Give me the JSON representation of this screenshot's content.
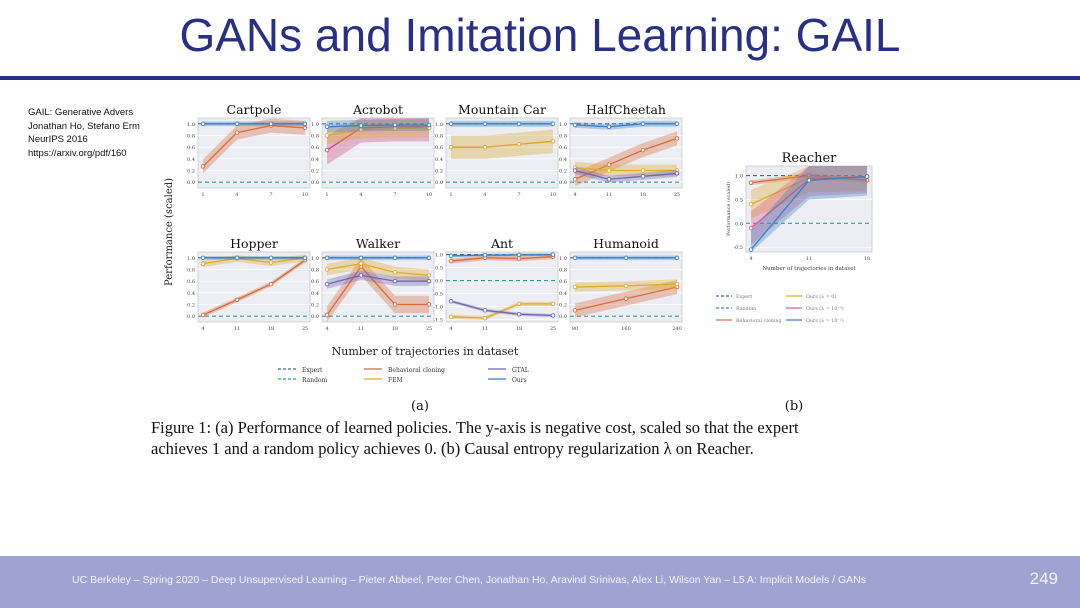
{
  "slide": {
    "title": "GANs and Imitation Learning: GAIL",
    "reference_lines": [
      "GAIL: Generative Advers",
      "Jonathan Ho, Stefano Erm",
      "NeurIPS 2016",
      "https://arxiv.org/pdf/160"
    ],
    "caption_lines": [
      "Figure 1: (a) Performance of learned policies. The y-axis is negative cost, scaled so that the expert",
      "achieves 1 and a random policy achieves 0. (b) Causal entropy regularization λ on Reacher."
    ],
    "footer": "UC Berkeley – Spring 2020 – Deep Unsupervised Learning – Pieter Abbeel, Peter Chen, Jonathan Ho, Aravind Srinivas, Alex Li, Wilson Yan – L5 A: Implicit Models / GANs",
    "page_number": "249"
  },
  "figure": {
    "ylabel": "Performance (scaled)",
    "xlabel": "Number of trajectories in dataset",
    "label_a": "(a)",
    "label_b": "(b)",
    "legend_a": [
      "Expert",
      "Random",
      "Behavioral cloning",
      "FEM",
      "GTAL",
      "Ours"
    ],
    "legend_b": [
      "Expert",
      "Random",
      "Behavioral cloning",
      "Ours (λ = 0)",
      "Ours (λ = 10⁻³)",
      "Ours (λ = 10⁻²)"
    ],
    "reacher_ylabel": "Performance (scaled)",
    "reacher_xlabel": "Number of trajectories in dataset"
  },
  "chart_data": [
    {
      "type": "line",
      "title": "Cartpole",
      "x": [
        1,
        4,
        7,
        10
      ],
      "xticks": [
        "1",
        "4",
        "7",
        "10"
      ],
      "ylim": [
        -0.1,
        1.1
      ],
      "yticks": [
        "0.0",
        "0.2",
        "0.4",
        "0.6",
        "0.8",
        "1.0"
      ],
      "series": [
        {
          "name": "Expert",
          "values": [
            1,
            1,
            1,
            1
          ],
          "color": "#3a67a8",
          "style": "dash"
        },
        {
          "name": "Random",
          "values": [
            0,
            0,
            0,
            0
          ],
          "color": "#2d9aa0",
          "style": "dash"
        },
        {
          "name": "Behavioral cloning",
          "values": [
            0.27,
            0.85,
            0.97,
            0.93
          ],
          "color": "#d8693a",
          "band": 0.12
        },
        {
          "name": "Ours",
          "values": [
            1,
            1,
            1,
            1
          ],
          "color": "#3b7ec2",
          "band": 0.04
        }
      ]
    },
    {
      "type": "line",
      "title": "Acrobot",
      "x": [
        1,
        4,
        7,
        10
      ],
      "xticks": [
        "1",
        "4",
        "7",
        "10"
      ],
      "ylim": [
        -0.1,
        1.1
      ],
      "yticks": [
        "0.0",
        "0.2",
        "0.4",
        "0.6",
        "0.8",
        "1.0"
      ],
      "series": [
        {
          "name": "Expert",
          "values": [
            1,
            1,
            1,
            1
          ],
          "color": "#3a67a8",
          "style": "dash"
        },
        {
          "name": "Random",
          "values": [
            0,
            0,
            0,
            0
          ],
          "color": "#2d9aa0",
          "style": "dash"
        },
        {
          "name": "Behavioral cloning",
          "values": [
            0.55,
            0.93,
            0.95,
            0.95
          ],
          "color": "#c9467a",
          "band": 0.25
        },
        {
          "name": "FEM",
          "values": [
            0.8,
            0.9,
            0.92,
            0.93
          ],
          "color": "#e0a92a",
          "band": 0.15
        },
        {
          "name": "Ours",
          "values": [
            0.95,
            0.97,
            0.98,
            0.98
          ],
          "color": "#3b7ec2",
          "band": 0.1
        }
      ]
    },
    {
      "type": "line",
      "title": "Mountain Car",
      "x": [
        1,
        4,
        7,
        10
      ],
      "xticks": [
        "1",
        "4",
        "7",
        "10"
      ],
      "ylim": [
        -0.1,
        1.1
      ],
      "yticks": [
        "0.0",
        "0.2",
        "0.4",
        "0.6",
        "0.8",
        "1.0"
      ],
      "series": [
        {
          "name": "Expert",
          "values": [
            1,
            1,
            1,
            1
          ],
          "color": "#3a67a8",
          "style": "dash"
        },
        {
          "name": "Random",
          "values": [
            0,
            0,
            0,
            0
          ],
          "color": "#2d9aa0",
          "style": "dash"
        },
        {
          "name": "Behavioral cloning",
          "values": [
            0.6,
            0.6,
            0.65,
            0.7
          ],
          "color": "#d9a52c",
          "band": 0.2
        },
        {
          "name": "Ours",
          "values": [
            1,
            1,
            1,
            1
          ],
          "color": "#3b7ec2",
          "band": 0.05
        }
      ]
    },
    {
      "type": "line",
      "title": "HalfCheetah",
      "x": [
        4,
        11,
        18,
        25
      ],
      "xticks": [
        "4",
        "11",
        "18",
        "25"
      ],
      "ylim": [
        -0.1,
        1.1
      ],
      "yticks": [
        "0.0",
        "0.2",
        "0.4",
        "0.6",
        "0.8",
        "1.0"
      ],
      "series": [
        {
          "name": "Expert",
          "values": [
            1,
            1,
            1,
            1
          ],
          "color": "#3a67a8",
          "style": "dash"
        },
        {
          "name": "Random",
          "values": [
            0,
            0,
            0,
            0
          ],
          "color": "#2d9aa0",
          "style": "dash"
        },
        {
          "name": "Behavioral cloning",
          "values": [
            0.05,
            0.3,
            0.55,
            0.75
          ],
          "color": "#d8693a",
          "band": 0.12
        },
        {
          "name": "FEM",
          "values": [
            0.25,
            0.2,
            0.2,
            0.2
          ],
          "color": "#e0a92a",
          "band": 0.1
        },
        {
          "name": "GTAL",
          "values": [
            0.2,
            0.05,
            0.1,
            0.15
          ],
          "color": "#7464b0",
          "band": 0.06
        },
        {
          "name": "Ours",
          "values": [
            0.98,
            0.95,
            1,
            1
          ],
          "color": "#3b7ec2",
          "band": 0.05
        }
      ]
    },
    {
      "type": "line",
      "title": "Hopper",
      "x": [
        4,
        11,
        18,
        25
      ],
      "xticks": [
        "4",
        "11",
        "18",
        "25"
      ],
      "ylim": [
        -0.1,
        1.1
      ],
      "yticks": [
        "0.0",
        "0.2",
        "0.4",
        "0.6",
        "0.8",
        "1.0"
      ],
      "series": [
        {
          "name": "Expert",
          "values": [
            1,
            1,
            1,
            1
          ],
          "color": "#3a67a8",
          "style": "dash"
        },
        {
          "name": "Random",
          "values": [
            0,
            0,
            0,
            0
          ],
          "color": "#2d9aa0",
          "style": "dash"
        },
        {
          "name": "Behavioral cloning",
          "values": [
            0.02,
            0.28,
            0.55,
            0.96
          ],
          "color": "#d8693a",
          "band": 0.04
        },
        {
          "name": "FEM",
          "values": [
            0.9,
            0.99,
            0.92,
            1
          ],
          "color": "#e0a92a",
          "band": 0.06
        },
        {
          "name": "Ours",
          "values": [
            1,
            1,
            1,
            1
          ],
          "color": "#3b7ec2",
          "band": 0.03
        }
      ]
    },
    {
      "type": "line",
      "title": "Walker",
      "x": [
        4,
        11,
        18,
        25
      ],
      "xticks": [
        "4",
        "11",
        "18",
        "25"
      ],
      "ylim": [
        -0.1,
        1.1
      ],
      "yticks": [
        "0.0",
        "0.2",
        "0.4",
        "0.6",
        "0.8",
        "1.0"
      ],
      "series": [
        {
          "name": "Expert",
          "values": [
            1,
            1,
            1,
            1
          ],
          "color": "#3a67a8",
          "style": "dash"
        },
        {
          "name": "Random",
          "values": [
            0,
            0,
            0,
            0
          ],
          "color": "#2d9aa0",
          "style": "dash"
        },
        {
          "name": "Behavioral cloning",
          "values": [
            0.02,
            0.85,
            0.2,
            0.2
          ],
          "color": "#d8693a",
          "band": 0.15
        },
        {
          "name": "FEM",
          "values": [
            0.8,
            0.9,
            0.75,
            0.7
          ],
          "color": "#e0a92a",
          "band": 0.1
        },
        {
          "name": "GTAL",
          "values": [
            0.55,
            0.7,
            0.6,
            0.6
          ],
          "color": "#7464b0",
          "band": 0.08
        },
        {
          "name": "Ours",
          "values": [
            1,
            1,
            1,
            1
          ],
          "color": "#3b7ec2",
          "band": 0.04
        }
      ]
    },
    {
      "type": "line",
      "title": "Ant",
      "x": [
        4,
        11,
        18,
        25
      ],
      "xticks": [
        "4",
        "11",
        "18",
        "25"
      ],
      "ylim": [
        -1.6,
        1.1
      ],
      "yticks": [
        "-1.5",
        "-1.0",
        "-0.5",
        "0.0",
        "0.5",
        "1.0"
      ],
      "series": [
        {
          "name": "Expert",
          "values": [
            1,
            1,
            1,
            1
          ],
          "color": "#3a67a8",
          "style": "dash"
        },
        {
          "name": "Random",
          "values": [
            0,
            0,
            0,
            0
          ],
          "color": "#2d9aa0",
          "style": "dash"
        },
        {
          "name": "Behavioral cloning",
          "values": [
            0.75,
            0.88,
            0.85,
            0.92
          ],
          "color": "#d8693a",
          "band": 0.1
        },
        {
          "name": "FEM",
          "values": [
            -1.4,
            -1.45,
            -0.9,
            -0.9
          ],
          "color": "#e0a92a",
          "band": 0.08
        },
        {
          "name": "GTAL",
          "values": [
            -0.8,
            -1.15,
            -1.3,
            -1.35
          ],
          "color": "#7464b0",
          "band": 0.06
        },
        {
          "name": "Ours",
          "values": [
            0.95,
            0.98,
            0.99,
            1
          ],
          "color": "#3b7ec2",
          "band": 0.05
        }
      ]
    },
    {
      "type": "line",
      "title": "Humanoid",
      "x": [
        80,
        160,
        240
      ],
      "xticks": [
        "80",
        "160",
        "240"
      ],
      "ylim": [
        -0.1,
        1.1
      ],
      "yticks": [
        "0.0",
        "0.2",
        "0.4",
        "0.6",
        "0.8",
        "1.0"
      ],
      "series": [
        {
          "name": "Expert",
          "values": [
            1,
            1,
            1
          ],
          "color": "#3a67a8",
          "style": "dash"
        },
        {
          "name": "Random",
          "values": [
            0,
            0,
            0
          ],
          "color": "#2d9aa0",
          "style": "dash"
        },
        {
          "name": "Behavioral cloning",
          "values": [
            0.1,
            0.3,
            0.5
          ],
          "color": "#d8693a",
          "band": 0.12
        },
        {
          "name": "FEM",
          "values": [
            0.5,
            0.52,
            0.55
          ],
          "color": "#e0a92a",
          "band": 0.08
        },
        {
          "name": "Ours",
          "values": [
            1,
            1,
            1
          ],
          "color": "#3b7ec2",
          "band": 0.04
        }
      ]
    },
    {
      "type": "line",
      "title": "Reacher",
      "x": [
        4,
        11,
        18
      ],
      "xticks": [
        "4",
        "11",
        "18"
      ],
      "ylim": [
        -0.6,
        1.2
      ],
      "yticks": [
        "-0.5",
        "0.0",
        "0.5",
        "1.0"
      ],
      "series": [
        {
          "name": "Expert",
          "values": [
            1,
            1,
            1
          ],
          "color": "#3a67a8",
          "style": "dash"
        },
        {
          "name": "Random",
          "values": [
            0,
            0,
            0
          ],
          "color": "#2d9aa0",
          "style": "dash"
        },
        {
          "name": "Behavioral cloning",
          "values": [
            0.85,
            1,
            0.9
          ],
          "color": "#d8693a",
          "band": 0.05
        },
        {
          "name": "Ours (λ = 0)",
          "values": [
            0.4,
            0.95,
            0.97
          ],
          "color": "#e0a92a",
          "band": 0.3
        },
        {
          "name": "Ours (λ = 10⁻³)",
          "values": [
            -0.1,
            0.92,
            0.98
          ],
          "color": "#e05a8a",
          "band": 0.35
        },
        {
          "name": "Ours (λ = 10⁻²)",
          "values": [
            -0.55,
            0.9,
            0.98
          ],
          "color": "#3b7ec2",
          "band": 0.4
        }
      ]
    }
  ]
}
